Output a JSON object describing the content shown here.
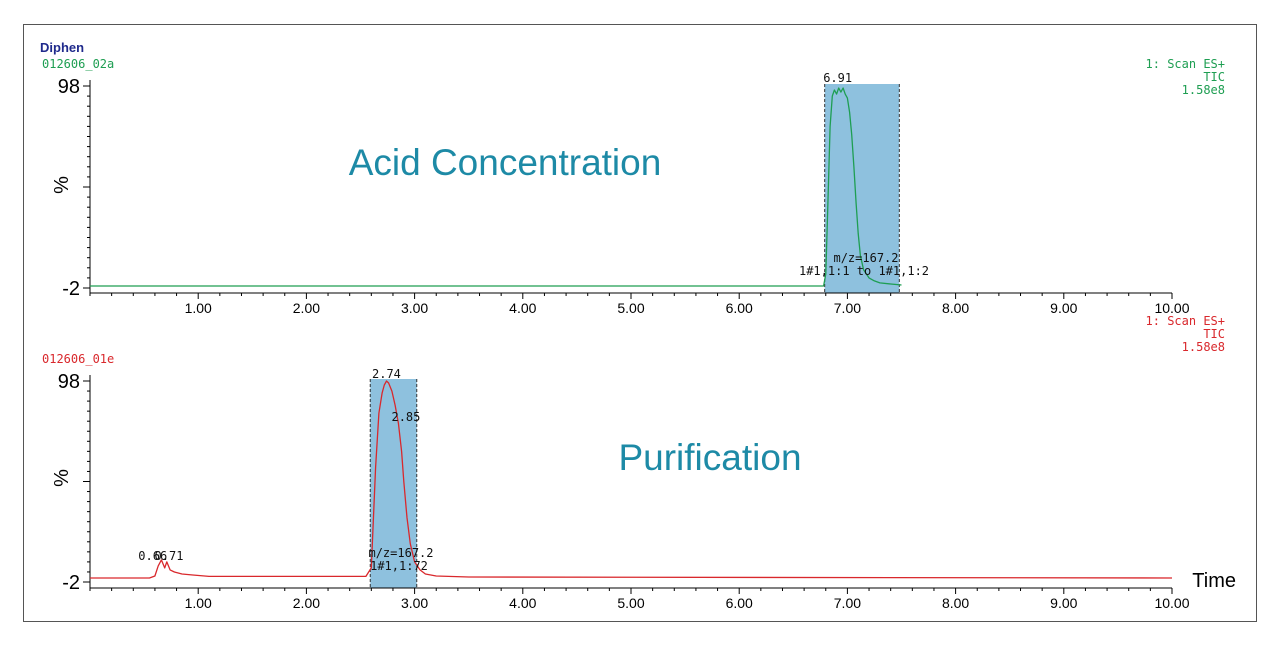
{
  "header": {
    "sample_name": "Diphen",
    "top_file": "012606_02a",
    "bottom_file": "012606_01e"
  },
  "colors": {
    "top_trace": "#1e9e52",
    "bottom_trace": "#d9282c",
    "highlight": "#8ec1de",
    "overlay_text": "#1d8aa6",
    "axis": "#000000"
  },
  "chart_data": [
    {
      "type": "line",
      "panel": "top",
      "overlay_title": "Acid Concentration",
      "ylabel": "%",
      "ytick_labels": [
        "98",
        "-2"
      ],
      "ylim": [
        -2,
        98
      ],
      "xlim": [
        0.0,
        10.0
      ],
      "xtick_labels": [
        "1.00",
        "2.00",
        "3.00",
        "4.00",
        "5.00",
        "6.00",
        "7.00",
        "8.00",
        "9.00",
        "10.00"
      ],
      "xlabel": "",
      "info": [
        "1: Scan ES+",
        "TIC",
        "1.58e8"
      ],
      "highlight_range": [
        6.79,
        7.48
      ],
      "peak_label": "6.91",
      "annotation": [
        "m/z=167.2",
        "1#1,1:1 to 1#1,1:2"
      ],
      "series": [
        {
          "x": [
            0.0,
            6.78,
            6.8,
            6.82,
            6.84,
            6.86,
            6.88,
            6.9,
            6.92,
            6.94,
            6.96,
            6.98,
            7.0,
            7.02,
            7.04,
            7.06,
            7.08,
            7.1,
            7.12,
            7.15,
            7.2,
            7.25,
            7.3,
            7.4,
            7.5
          ],
          "y": [
            -1,
            -1,
            5,
            40,
            78,
            93,
            96,
            94,
            97,
            95,
            97,
            94,
            92,
            85,
            74,
            58,
            40,
            25,
            14,
            7,
            3,
            1.5,
            0.5,
            0,
            -0.5
          ]
        }
      ]
    },
    {
      "type": "line",
      "panel": "bottom",
      "overlay_title": "Purification",
      "ylabel": "%",
      "ytick_labels": [
        "98",
        "-2"
      ],
      "ylim": [
        -2,
        98
      ],
      "xlim": [
        0.0,
        10.0
      ],
      "xtick_labels": [
        "1.00",
        "2.00",
        "3.00",
        "4.00",
        "5.00",
        "6.00",
        "7.00",
        "8.00",
        "9.00",
        "10.00"
      ],
      "xlabel": "Time",
      "info": [
        "1: Scan ES+",
        "TIC",
        "1.58e8"
      ],
      "highlight_range": [
        2.59,
        3.02
      ],
      "peak_labels": [
        {
          "text": "0.66",
          "x": 0.58,
          "y": 7
        },
        {
          "text": "0.71",
          "x": 0.73,
          "y": 7
        },
        {
          "text": "2.74",
          "x": 2.74,
          "y": 98
        },
        {
          "text": "2.85",
          "x": 2.92,
          "y": 76
        }
      ],
      "annotation": [
        "m/z=167.2",
        "1#1,1:72"
      ],
      "series": [
        {
          "x": [
            0.0,
            0.55,
            0.6,
            0.63,
            0.66,
            0.69,
            0.71,
            0.74,
            0.78,
            0.85,
            0.95,
            1.1,
            2.55,
            2.6,
            2.64,
            2.67,
            2.7,
            2.72,
            2.74,
            2.76,
            2.79,
            2.82,
            2.85,
            2.88,
            2.9,
            2.93,
            2.96,
            3.0,
            3.05,
            3.1,
            3.2,
            3.5,
            10.0
          ],
          "y": [
            0,
            0,
            1,
            6,
            9,
            5,
            8,
            4,
            3,
            2,
            1.5,
            0.8,
            0.8,
            5,
            55,
            82,
            92,
            96,
            98,
            97,
            93,
            86,
            77,
            63,
            48,
            30,
            17,
            8,
            4,
            2,
            1,
            0.5,
            0
          ]
        }
      ]
    }
  ]
}
